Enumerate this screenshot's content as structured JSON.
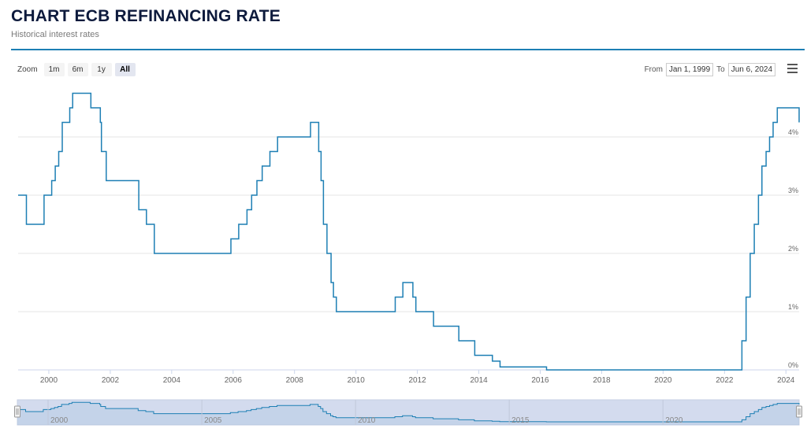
{
  "header": {
    "title": "CHART ECB REFINANCING RATE",
    "subtitle": "Historical interest rates"
  },
  "toolbar": {
    "zoom_label": "Zoom",
    "zoom_buttons": [
      "1m",
      "6m",
      "1y",
      "All"
    ],
    "active_zoom": "All",
    "from_label": "From",
    "from_value": "Jan 1, 1999",
    "to_label": "To",
    "to_value": "Jun 6, 2024"
  },
  "colors": {
    "line": "#1d7fb4",
    "title": "#0d1a3c",
    "navigator_mask": "#d3dbee"
  },
  "icons": {
    "menu": "hamburger-icon"
  },
  "chart_data": {
    "type": "line",
    "step": true,
    "series": [
      {
        "name": "",
        "points": [
          [
            "1999-01-01",
            3.0
          ],
          [
            "1999-04-09",
            2.5
          ],
          [
            "1999-11-05",
            3.0
          ],
          [
            "2000-02-04",
            3.25
          ],
          [
            "2000-03-17",
            3.5
          ],
          [
            "2000-04-28",
            3.75
          ],
          [
            "2000-06-09",
            4.25
          ],
          [
            "2000-06-28",
            4.25
          ],
          [
            "2000-09-06",
            4.5
          ],
          [
            "2000-10-11",
            4.75
          ],
          [
            "2001-05-15",
            4.5
          ],
          [
            "2001-09-05",
            4.25
          ],
          [
            "2001-09-18",
            3.75
          ],
          [
            "2001-11-14",
            3.25
          ],
          [
            "2002-12-06",
            2.75
          ],
          [
            "2003-03-07",
            2.5
          ],
          [
            "2003-06-09",
            2.0
          ],
          [
            "2005-12-06",
            2.25
          ],
          [
            "2006-03-08",
            2.5
          ],
          [
            "2006-06-15",
            2.75
          ],
          [
            "2006-08-09",
            3.0
          ],
          [
            "2006-10-11",
            3.25
          ],
          [
            "2006-12-13",
            3.5
          ],
          [
            "2007-03-14",
            3.75
          ],
          [
            "2007-06-13",
            4.0
          ],
          [
            "2008-07-09",
            4.25
          ],
          [
            "2008-10-15",
            3.75
          ],
          [
            "2008-11-12",
            3.25
          ],
          [
            "2008-12-10",
            2.5
          ],
          [
            "2009-01-21",
            2.0
          ],
          [
            "2009-03-11",
            1.5
          ],
          [
            "2009-04-08",
            1.25
          ],
          [
            "2009-05-13",
            1.0
          ],
          [
            "2011-04-13",
            1.25
          ],
          [
            "2011-07-13",
            1.5
          ],
          [
            "2011-11-09",
            1.25
          ],
          [
            "2011-12-14",
            1.0
          ],
          [
            "2012-07-11",
            0.75
          ],
          [
            "2013-05-08",
            0.5
          ],
          [
            "2013-11-13",
            0.25
          ],
          [
            "2014-06-11",
            0.15
          ],
          [
            "2014-09-10",
            0.05
          ],
          [
            "2016-03-16",
            0.0
          ],
          [
            "2022-07-27",
            0.5
          ],
          [
            "2022-09-14",
            1.25
          ],
          [
            "2022-11-02",
            2.0
          ],
          [
            "2022-12-21",
            2.5
          ],
          [
            "2023-02-08",
            3.0
          ],
          [
            "2023-03-22",
            3.5
          ],
          [
            "2023-05-10",
            3.75
          ],
          [
            "2023-06-21",
            4.0
          ],
          [
            "2023-08-02",
            4.25
          ],
          [
            "2023-09-20",
            4.5
          ],
          [
            "2024-06-06",
            4.25
          ]
        ]
      }
    ],
    "x_range": [
      "1999-01-01",
      "2024-06-06"
    ],
    "ylim": [
      0,
      5
    ],
    "x_ticks": [
      "2000",
      "2002",
      "2004",
      "2006",
      "2008",
      "2010",
      "2012",
      "2014",
      "2016",
      "2018",
      "2020",
      "2022",
      "2024"
    ],
    "y_ticks": [
      "0%",
      "1%",
      "2%",
      "3%",
      "4%"
    ],
    "y_tick_values": [
      0,
      1,
      2,
      3,
      4
    ],
    "navigator_ticks": [
      "2000",
      "2005",
      "2010",
      "2015",
      "2020"
    ],
    "grid": true,
    "y_axis_side": "right"
  }
}
